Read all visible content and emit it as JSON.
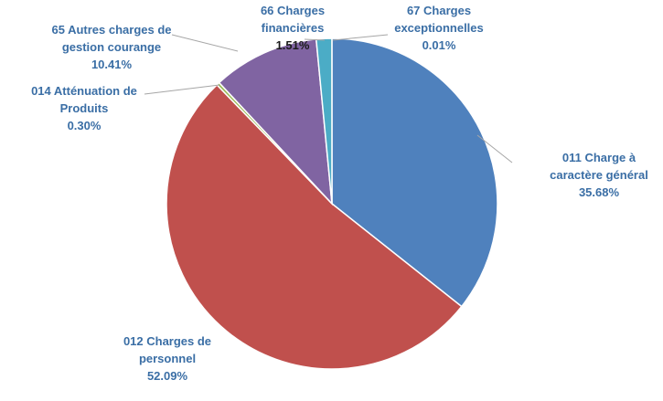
{
  "chart_data": {
    "type": "pie",
    "slices": [
      {
        "name": "011 Charge à caractère général",
        "lines": [
          "011 Charge à",
          "caractère général"
        ],
        "value_label": "35.68%",
        "value": 35.68,
        "color": "#4f81bd",
        "label_color": "#3a6ea5"
      },
      {
        "name": "012 Charges de personnel",
        "lines": [
          "012 Charges de",
          "personnel"
        ],
        "value_label": "52.09%",
        "value": 52.09,
        "color": "#c0504d",
        "label_color": "#3a6ea5"
      },
      {
        "name": "014 Atténuation de Produits",
        "lines": [
          "014 Atténuation de",
          "Produits"
        ],
        "value_label": "0.30%",
        "value": 0.3,
        "color": "#9bbb59",
        "label_color": "#3a6ea5"
      },
      {
        "name": "65 Autres charges de gestion courange",
        "lines": [
          "65 Autres charges de",
          "gestion courange"
        ],
        "value_label": "10.41%",
        "value": 10.41,
        "color": "#8064a2",
        "label_color": "#3a6ea5"
      },
      {
        "name": "66 Charges financières",
        "lines": [
          "66 Charges",
          "financières"
        ],
        "value_label": "1.51%",
        "value": 1.51,
        "color": "#4bacc6",
        "label_color": "#3a6ea5",
        "value_color": "#1a1a1a"
      },
      {
        "name": "67 Charges exceptionnelles",
        "lines": [
          "67 Charges",
          "exceptionnelles"
        ],
        "value_label": "0.01%",
        "value": 0.01,
        "color": "#f79646",
        "label_color": "#3a6ea5"
      }
    ],
    "legend": "none",
    "start_angle": "12 o'clock",
    "direction": "clockwise"
  }
}
